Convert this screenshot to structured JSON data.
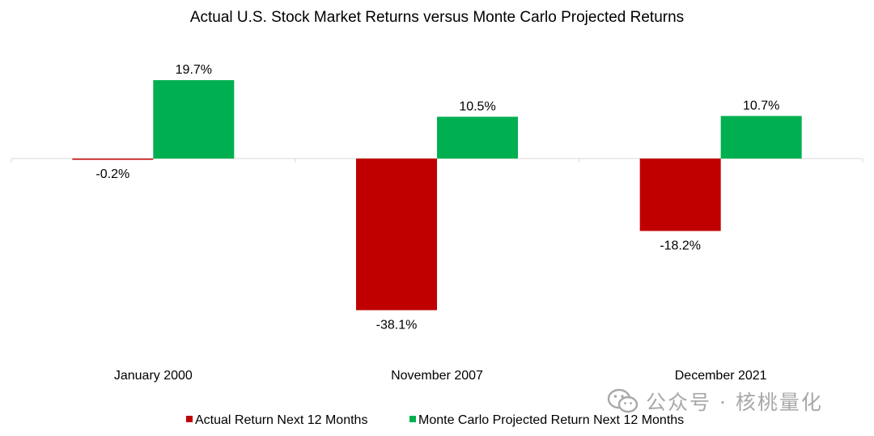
{
  "chart_data": {
    "type": "bar",
    "title": "Actual U.S. Stock Market Returns versus Monte Carlo Projected Returns",
    "categories": [
      "January 2000",
      "November 2007",
      "December 2021"
    ],
    "series": [
      {
        "name": "Actual Return Next 12 Months",
        "color": "#c00000",
        "values": [
          -0.2,
          -38.1,
          -18.2
        ],
        "labels": [
          "-0.2%",
          "-38.1%",
          "-18.2%"
        ]
      },
      {
        "name": "Monte Carlo Projected Return Next 12 Months",
        "color": "#00b050",
        "values": [
          19.7,
          10.5,
          10.7
        ],
        "labels": [
          "19.7%",
          "10.5%",
          "10.7%"
        ]
      }
    ],
    "xlabel": "",
    "ylabel": "",
    "ylim": [
      -45,
      25
    ],
    "grid": false,
    "legend": "bottom-center"
  },
  "watermark": {
    "text": "公众号 · 核桃量化",
    "icon": "wechat-icon"
  }
}
